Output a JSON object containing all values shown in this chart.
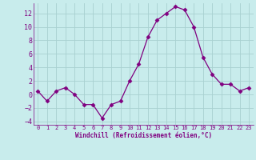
{
  "x": [
    0,
    1,
    2,
    3,
    4,
    5,
    6,
    7,
    8,
    9,
    10,
    11,
    12,
    13,
    14,
    15,
    16,
    17,
    18,
    19,
    20,
    21,
    22,
    23
  ],
  "y": [
    0.5,
    -1.0,
    0.5,
    1.0,
    0.0,
    -1.5,
    -1.5,
    -3.5,
    -1.5,
    -1.0,
    2.0,
    4.5,
    8.5,
    11.0,
    12.0,
    13.0,
    12.5,
    10.0,
    5.5,
    3.0,
    1.5,
    1.5,
    0.5,
    1.0
  ],
  "line_color": "#800080",
  "marker": "D",
  "marker_size": 2.5,
  "bg_color": "#c8ecec",
  "grid_color": "#a8d0d0",
  "xlabel": "Windchill (Refroidissement éolien,°C)",
  "xlabel_color": "#800080",
  "tick_color": "#800080",
  "ylim": [
    -4.5,
    13.5
  ],
  "xlim": [
    -0.5,
    23.5
  ],
  "yticks": [
    -4,
    -2,
    0,
    2,
    4,
    6,
    8,
    10,
    12
  ],
  "xticks": [
    0,
    1,
    2,
    3,
    4,
    5,
    6,
    7,
    8,
    9,
    10,
    11,
    12,
    13,
    14,
    15,
    16,
    17,
    18,
    19,
    20,
    21,
    22,
    23
  ]
}
